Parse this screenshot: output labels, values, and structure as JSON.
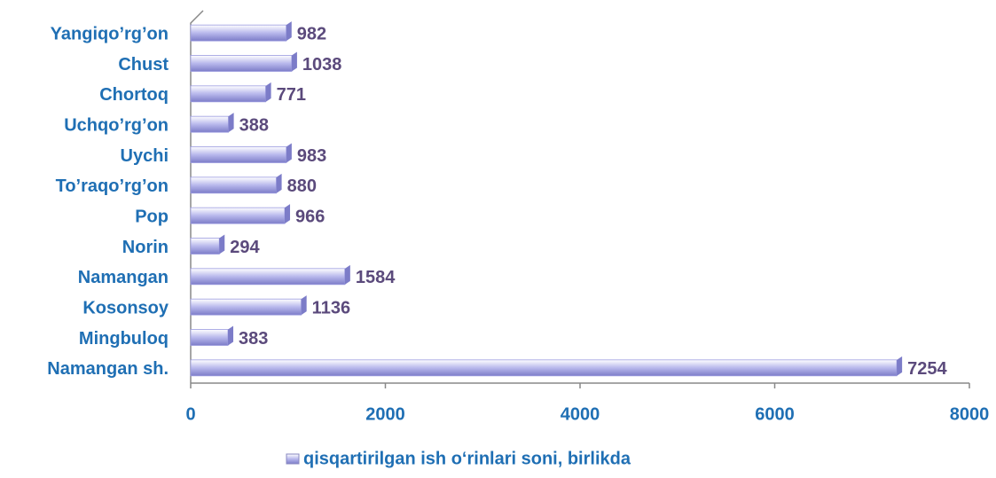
{
  "chart_data": {
    "type": "bar",
    "orientation": "horizontal",
    "categories": [
      "Yangiqo’rg’on",
      "Chust",
      "Chortoq",
      "Uchqo’rg’on",
      "Uychi",
      "To’raqo’rg’on",
      "Pop",
      "Norin",
      "Namangan",
      "Kosonsoy",
      "Mingbuloq",
      "Namangan sh."
    ],
    "series": [
      {
        "name": "qisqartirilgan ish o‘rinlari soni, birlikda",
        "color": "#9c9ce0",
        "values": [
          982,
          1038,
          771,
          388,
          983,
          880,
          966,
          294,
          1584,
          1136,
          383,
          7254
        ]
      }
    ],
    "xlim": [
      0,
      8000
    ],
    "xticks": [
      0,
      2000,
      4000,
      6000,
      8000
    ],
    "legend": "bottom"
  }
}
